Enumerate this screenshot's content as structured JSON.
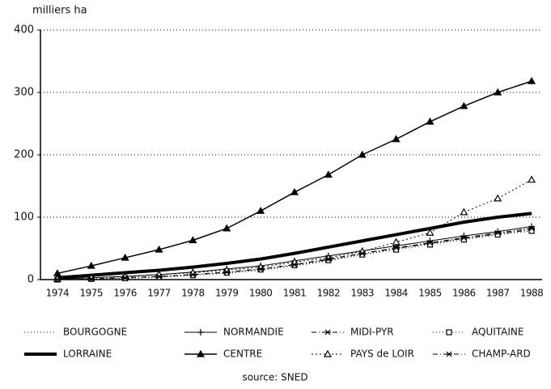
{
  "chart_data": {
    "type": "line",
    "y_label": "milliers ha",
    "source": "source: SNED",
    "categories": [
      "1974",
      "1975",
      "1976",
      "1977",
      "1978",
      "1979",
      "1980",
      "1981",
      "1982",
      "1983",
      "1984",
      "1985",
      "1986",
      "1987",
      "1988"
    ],
    "ylim": [
      0,
      400
    ],
    "yticks": [
      0,
      100,
      200,
      300,
      400
    ],
    "grid": true,
    "series": [
      {
        "name": "BOURGOGNE",
        "color": "#000000",
        "dash": "1,3",
        "width": 1,
        "marker": "none",
        "values": [
          0,
          1,
          2,
          4,
          7,
          10,
          15,
          22,
          30,
          40,
          50,
          58,
          66,
          74,
          82
        ]
      },
      {
        "name": "NORMANDIE",
        "color": "#000000",
        "dash": "none",
        "width": 1,
        "marker": "plus",
        "values": [
          1,
          3,
          5,
          8,
          12,
          17,
          22,
          30,
          38,
          46,
          54,
          62,
          70,
          77,
          85
        ]
      },
      {
        "name": "MIDI-PYR",
        "color": "#000000",
        "dash": "6,3,1,3",
        "width": 1,
        "marker": "star",
        "values": [
          0,
          1,
          3,
          5,
          8,
          12,
          17,
          24,
          32,
          42,
          50,
          58,
          66,
          73,
          80
        ]
      },
      {
        "name": "AQUITAINE",
        "color": "#000000",
        "dash": "1,3",
        "width": 1,
        "marker": "square",
        "values": [
          0,
          1,
          2,
          4,
          7,
          11,
          16,
          23,
          31,
          40,
          48,
          56,
          64,
          72,
          78
        ]
      },
      {
        "name": "LORRAINE",
        "color": "#000000",
        "dash": "none",
        "width": 4,
        "marker": "none",
        "values": [
          3,
          7,
          11,
          15,
          20,
          26,
          33,
          42,
          52,
          62,
          72,
          82,
          92,
          100,
          106
        ]
      },
      {
        "name": "CENTRE",
        "color": "#000000",
        "dash": "none",
        "width": 1.5,
        "marker": "triangle",
        "values": [
          10,
          22,
          35,
          48,
          63,
          82,
          110,
          140,
          168,
          200,
          225,
          253,
          278,
          300,
          318
        ]
      },
      {
        "name": "PAYS de LOIR",
        "color": "#000000",
        "dash": "2,3",
        "width": 1,
        "marker": "triangle-open",
        "values": [
          1,
          3,
          5,
          8,
          11,
          15,
          20,
          28,
          35,
          45,
          60,
          75,
          108,
          130,
          160
        ]
      },
      {
        "name": "CHAMP-ARD",
        "color": "#000000",
        "dash": "6,3,1,3",
        "width": 1,
        "marker": "star",
        "values": [
          0,
          1,
          3,
          5,
          8,
          12,
          17,
          24,
          33,
          42,
          51,
          59,
          67,
          75,
          82
        ]
      }
    ]
  }
}
